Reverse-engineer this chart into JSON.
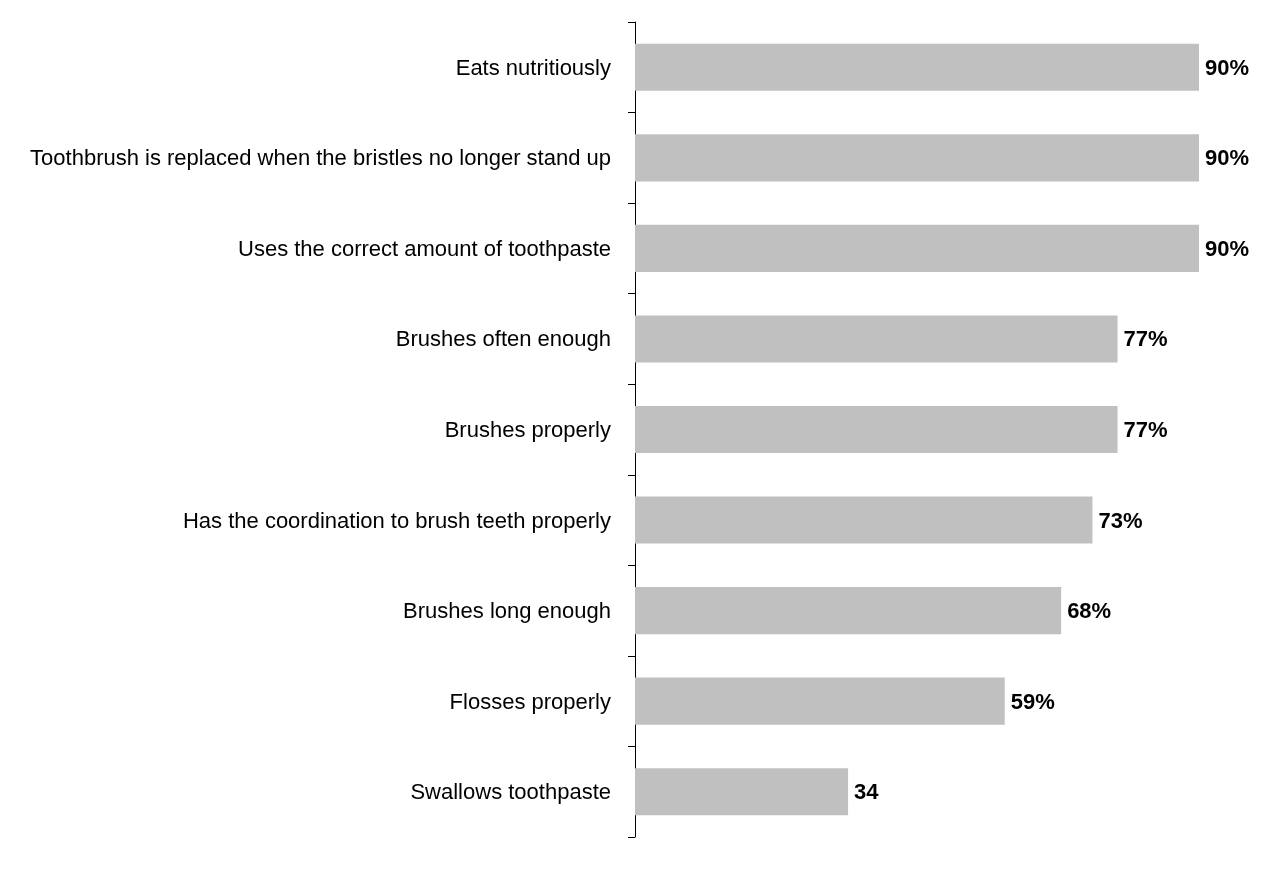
{
  "chart_data": {
    "type": "bar",
    "orientation": "horizontal",
    "categories": [
      "Eats nutritiously",
      "Toothbrush is replaced when the bristles no longer stand up",
      "Uses the correct amount of toothpaste",
      "Brushes often enough",
      "Brushes properly",
      "Has the coordination to brush teeth properly",
      "Brushes long enough",
      "Flosses properly",
      "Swallows toothpaste"
    ],
    "values": [
      90,
      90,
      90,
      77,
      77,
      73,
      68,
      59,
      34
    ],
    "value_labels": [
      "90%",
      "90%",
      "90%",
      "77%",
      "77%",
      "73%",
      "68%",
      "59%",
      "34"
    ],
    "color": "#c0c0c0",
    "grid": false
  }
}
